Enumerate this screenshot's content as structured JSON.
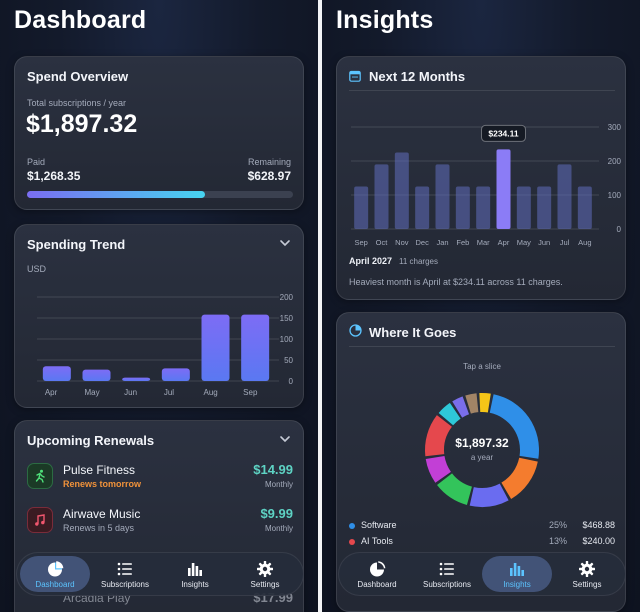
{
  "left": {
    "title": "Dashboard",
    "spend_overview": {
      "title": "Spend Overview",
      "total_label": "Total subscriptions / year",
      "total_value": "$1,897.32",
      "paid_label": "Paid",
      "paid_value": "$1,268.35",
      "remaining_label": "Remaining",
      "remaining_value": "$628.97",
      "progress_fraction": 0.668
    },
    "trend": {
      "title": "Spending Trend",
      "unit": "USD"
    },
    "renewals": {
      "title": "Upcoming Renewals",
      "items": [
        {
          "name": "Pulse Fitness",
          "sub": "Renews tomorrow",
          "price": "$14.99",
          "cycle": "Monthly",
          "icon": "runner-icon"
        },
        {
          "name": "Airwave Music",
          "sub": "Renews in 5 days",
          "price": "$9.99",
          "cycle": "Monthly",
          "icon": "music-note-icon"
        },
        {
          "name": "Arcadia Play",
          "sub": "",
          "price": "$17.99",
          "cycle": "",
          "icon": "game-icon"
        }
      ]
    }
  },
  "right": {
    "title": "Insights",
    "next12": {
      "title": "Next 12 Months",
      "tooltip": "$234.11",
      "month_label": "April 2027",
      "month_charges": "11 charges",
      "summary": "Heaviest month is April at $234.11 across 11 charges."
    },
    "where": {
      "title": "Where It Goes",
      "hint": "Tap a slice",
      "center_value": "$1,897.32",
      "center_sub": "a year",
      "legend": [
        {
          "name": "Software",
          "pct": "25%",
          "amount": "$468.88",
          "color": "#2f8fe8"
        },
        {
          "name": "AI Tools",
          "pct": "13%",
          "amount": "$240.00",
          "color": "#e5484d"
        }
      ]
    }
  },
  "nav": {
    "dashboard": "Dashboard",
    "subscriptions": "Subscriptions",
    "insights": "Insights",
    "settings": "Settings"
  },
  "chart_data": [
    {
      "type": "bar",
      "title": "Spending Trend",
      "ylabel": "USD",
      "categories": [
        "Apr",
        "May",
        "Jun",
        "Jul",
        "Aug",
        "Sep"
      ],
      "values": [
        35,
        27,
        8,
        30,
        158,
        158
      ],
      "yticks": [
        0,
        50,
        100,
        150,
        200
      ],
      "ylim": [
        0,
        200
      ],
      "grid": true
    },
    {
      "type": "bar",
      "title": "Next 12 Months",
      "categories": [
        "Sep",
        "Oct",
        "Nov",
        "Dec",
        "Jan",
        "Feb",
        "Mar",
        "Apr",
        "May",
        "Jun",
        "Jul",
        "Aug"
      ],
      "values": [
        125,
        190,
        225,
        125,
        190,
        125,
        125,
        234.11,
        125,
        125,
        190,
        125
      ],
      "highlight_index": 7,
      "yticks": [
        0,
        100,
        200,
        300
      ],
      "ylim": [
        0,
        300
      ],
      "grid": true
    },
    {
      "type": "pie",
      "title": "Where It Goes",
      "donut": true,
      "slices": [
        {
          "label": "Software",
          "value": 25,
          "color": "#2f8fe8"
        },
        {
          "label": "",
          "value": 14,
          "color": "#f47c2e"
        },
        {
          "label": "",
          "value": 12,
          "color": "#6a6cf0"
        },
        {
          "label": "",
          "value": 11,
          "color": "#33c45b"
        },
        {
          "label": "",
          "value": 8,
          "color": "#c23fd6"
        },
        {
          "label": "AI Tools",
          "value": 13,
          "color": "#e5484d"
        },
        {
          "label": "",
          "value": 5,
          "color": "#2ec8d8"
        },
        {
          "label": "",
          "value": 4,
          "color": "#7a6eea"
        },
        {
          "label": "",
          "value": 4,
          "color": "#a28466"
        },
        {
          "label": "",
          "value": 4,
          "color": "#f5c518"
        }
      ]
    }
  ]
}
